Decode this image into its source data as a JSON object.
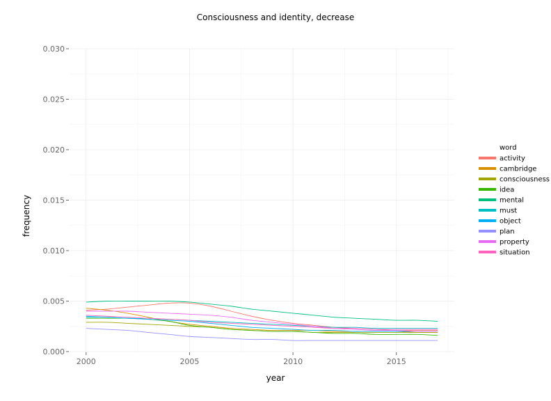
{
  "chart_data": {
    "type": "line",
    "title": "Consciousness and identity, decrease",
    "xlabel": "year",
    "ylabel": "frequency",
    "xlim": [
      1999.2,
      2017.8
    ],
    "ylim": [
      0,
      0.03
    ],
    "x_ticks": [
      2000,
      2005,
      2010,
      2015
    ],
    "x_tick_labels": [
      "2000",
      "2005",
      "2010",
      "2015"
    ],
    "y_ticks": [
      0.0,
      0.005,
      0.01,
      0.015,
      0.02,
      0.025,
      0.03
    ],
    "y_tick_labels": [
      "0.000",
      "0.005",
      "0.010",
      "0.015",
      "0.020",
      "0.025",
      "0.030"
    ],
    "grid": true,
    "legend": {
      "title": "word",
      "placement": "right"
    },
    "x": [
      2000,
      2001,
      2002,
      2003,
      2004,
      2005,
      2006,
      2007,
      2008,
      2009,
      2010,
      2011,
      2012,
      2013,
      2014,
      2015,
      2016,
      2017
    ],
    "series": [
      {
        "name": "activity",
        "color": "#F8766D",
        "values": [
          0.0041,
          0.0042,
          0.0044,
          0.0046,
          0.0048,
          0.0048,
          0.0045,
          0.004,
          0.0035,
          0.0031,
          0.0028,
          0.0026,
          0.0024,
          0.0023,
          0.0022,
          0.0021,
          0.0021,
          0.0021
        ]
      },
      {
        "name": "cambridge",
        "color": "#D89000",
        "values": [
          0.0043,
          0.0041,
          0.0038,
          0.0034,
          0.003,
          0.0027,
          0.0025,
          0.0023,
          0.0022,
          0.0021,
          0.0021,
          0.0021,
          0.002,
          0.002,
          0.002,
          0.002,
          0.0019,
          0.0019
        ]
      },
      {
        "name": "consciousness",
        "color": "#A3A500",
        "values": [
          0.0029,
          0.0029,
          0.0028,
          0.0027,
          0.0026,
          0.0025,
          0.0024,
          0.0022,
          0.0021,
          0.002,
          0.002,
          0.0019,
          0.0019,
          0.0019,
          0.0019,
          0.0019,
          0.0019,
          0.0019
        ]
      },
      {
        "name": "idea",
        "color": "#39B600",
        "values": [
          0.0033,
          0.0033,
          0.0033,
          0.0032,
          0.003,
          0.0026,
          0.0024,
          0.0022,
          0.0021,
          0.002,
          0.002,
          0.0019,
          0.0018,
          0.0018,
          0.0017,
          0.0017,
          0.0017,
          0.0016
        ]
      },
      {
        "name": "mental",
        "color": "#00BF7D",
        "values": [
          0.0049,
          0.005,
          0.005,
          0.005,
          0.005,
          0.0049,
          0.0047,
          0.0045,
          0.0042,
          0.004,
          0.0038,
          0.0036,
          0.0034,
          0.0033,
          0.0032,
          0.0031,
          0.0031,
          0.003
        ]
      },
      {
        "name": "must",
        "color": "#00BFC4",
        "values": [
          0.0034,
          0.0034,
          0.0033,
          0.0033,
          0.0032,
          0.0031,
          0.003,
          0.0029,
          0.0028,
          0.0027,
          0.0026,
          0.0025,
          0.0024,
          0.0024,
          0.0023,
          0.0023,
          0.0023,
          0.0023
        ]
      },
      {
        "name": "object",
        "color": "#00B0F6",
        "values": [
          0.0035,
          0.0034,
          0.0033,
          0.0032,
          0.0031,
          0.003,
          0.0028,
          0.0026,
          0.0024,
          0.0023,
          0.0022,
          0.0021,
          0.0021,
          0.002,
          0.002,
          0.002,
          0.002,
          0.002
        ]
      },
      {
        "name": "plan",
        "color": "#9590FF",
        "values": [
          0.0023,
          0.0022,
          0.0021,
          0.0019,
          0.0017,
          0.0015,
          0.0014,
          0.0013,
          0.0012,
          0.0012,
          0.0011,
          0.0011,
          0.0011,
          0.0011,
          0.0011,
          0.0011,
          0.0011,
          0.0011
        ]
      },
      {
        "name": "property",
        "color": "#E76BF3",
        "values": [
          0.004,
          0.004,
          0.004,
          0.0039,
          0.0038,
          0.0037,
          0.0036,
          0.0034,
          0.0031,
          0.0029,
          0.0027,
          0.0025,
          0.0023,
          0.0022,
          0.0021,
          0.0021,
          0.002,
          0.002
        ]
      },
      {
        "name": "situation",
        "color": "#FF62BC",
        "values": [
          0.0036,
          0.0035,
          0.0034,
          0.0033,
          0.0032,
          0.0031,
          0.0029,
          0.0028,
          0.0027,
          0.0026,
          0.0025,
          0.0024,
          0.0023,
          0.0023,
          0.0022,
          0.0022,
          0.0022,
          0.0022
        ]
      }
    ]
  }
}
